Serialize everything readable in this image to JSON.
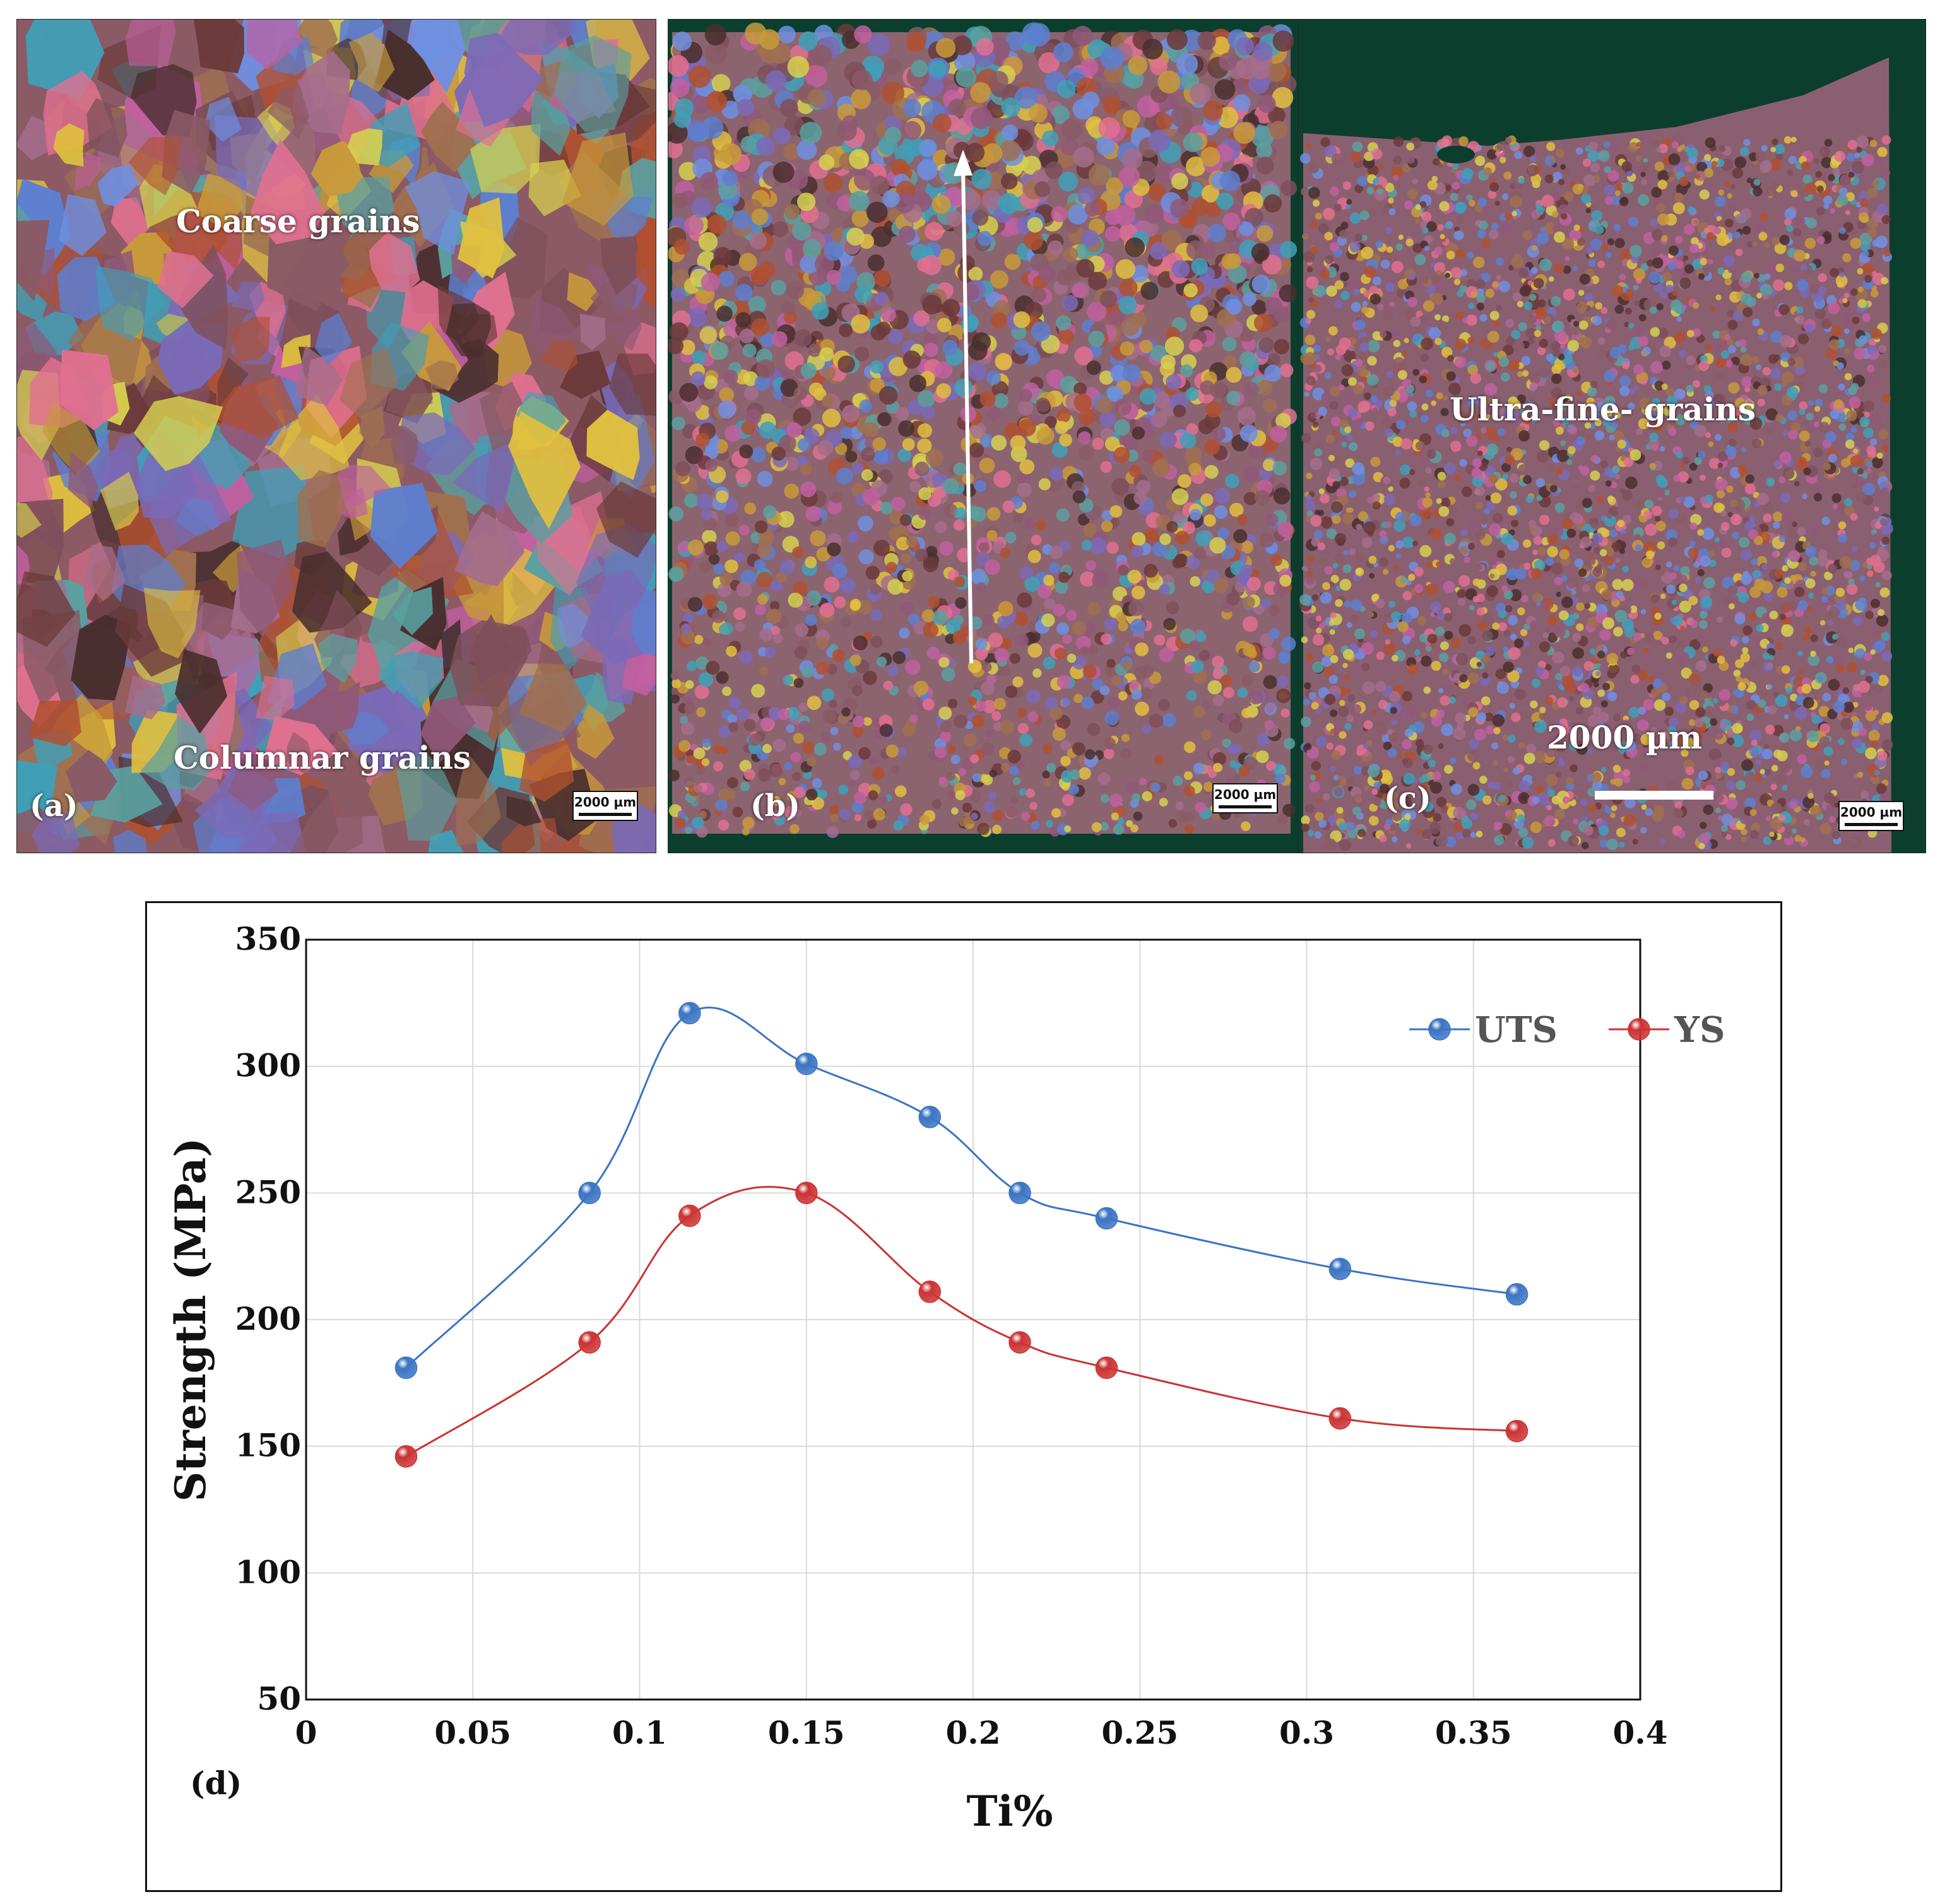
{
  "panels": [
    {
      "id": "a",
      "tag": "(a)",
      "labels": [
        "Coarse grains",
        "Columnar grains"
      ],
      "scale_bar": "2000 µm"
    },
    {
      "id": "b",
      "tag": "(b)",
      "scale_bar": "2000 µm"
    },
    {
      "id": "c",
      "tag": "(c)",
      "labels": [
        "Ultra-fine- grains",
        "2000 µm"
      ],
      "scale_bar": "2000 µm"
    }
  ],
  "chart_tag": "(d)",
  "colors": {
    "uts": "#3a74c4",
    "ys": "#cc3333",
    "grid": "#d9d9d9",
    "axis": "#111111"
  },
  "chart_data": {
    "type": "line",
    "xlabel": "Ti%",
    "ylabel": "Strength (MPa)",
    "xlim": [
      0,
      0.4
    ],
    "ylim": [
      50,
      350
    ],
    "xticks": [
      "0",
      "0.05",
      "0.1",
      "0.15",
      "0.2",
      "0.25",
      "0.3",
      "0.35",
      "0.4"
    ],
    "yticks": [
      "50",
      "100",
      "150",
      "200",
      "250",
      "300",
      "350"
    ],
    "grid": true,
    "legend_position": "top-right",
    "x": [
      0.03,
      0.085,
      0.115,
      0.15,
      0.187,
      0.214,
      0.24,
      0.31,
      0.363
    ],
    "series": [
      {
        "name": "UTS",
        "values": [
          181,
          250,
          321,
          301,
          280,
          250,
          240,
          220,
          210
        ]
      },
      {
        "name": "YS",
        "values": [
          146,
          191,
          241,
          250,
          211,
          191,
          181,
          161,
          156
        ]
      }
    ]
  }
}
